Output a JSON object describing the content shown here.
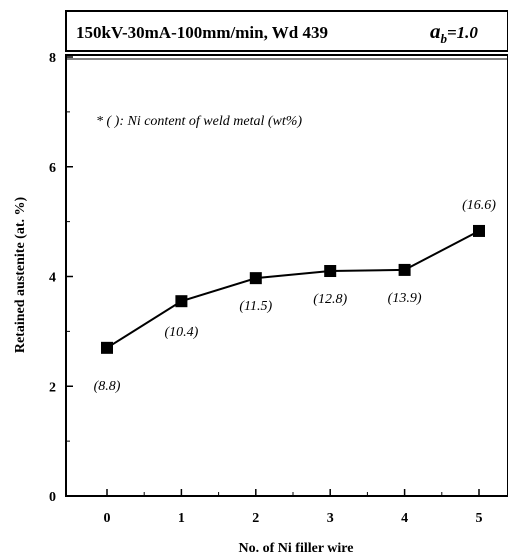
{
  "chart_data": {
    "type": "line",
    "title": "150kV-30mA-100mm/min, Wd 439",
    "title_param_symbol": "a",
    "title_param_subscript": "b",
    "title_param_value": "=1.0",
    "note": "* ( ): Ni content of weld metal (wt%)",
    "xlabel": "No. of Ni filler wire",
    "ylabel": "Retained austenite (at. %)",
    "xlim": [
      -0.6,
      5.3
    ],
    "ylim": [
      0,
      8
    ],
    "x_ticks": [
      0,
      1,
      2,
      3,
      4,
      5
    ],
    "x_tick_labels": [
      "0",
      "1",
      "2",
      "3",
      "4",
      "5"
    ],
    "y_ticks": [
      0,
      2,
      4,
      6,
      8
    ],
    "y_tick_labels": [
      "0",
      "2",
      "4",
      "6",
      "8"
    ],
    "grid": false,
    "marker": "filled-square",
    "color": "#000000",
    "series": [
      {
        "x": [
          0,
          1,
          2,
          3,
          4,
          5
        ],
        "y": [
          2.7,
          3.55,
          3.97,
          4.1,
          4.12,
          4.83
        ],
        "data_labels": [
          "(8.8)",
          "(10.4)",
          "(11.5)",
          "(12.8)",
          "(13.9)",
          "(16.6)"
        ]
      }
    ]
  }
}
